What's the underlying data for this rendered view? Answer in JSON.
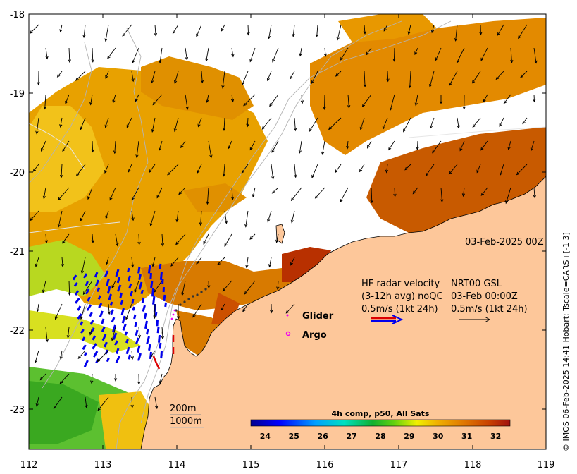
{
  "axes": {
    "x_ticks": [
      "112",
      "113",
      "114",
      "115",
      "116",
      "117",
      "118",
      "119"
    ],
    "y_ticks": [
      "-18",
      "-19",
      "-20",
      "-21",
      "-22",
      "-23"
    ],
    "xlim": [
      112,
      119
    ],
    "ylim": [
      -23.5,
      -18
    ]
  },
  "map": {
    "date_label": "03-Feb-2025 00Z",
    "legend_glider": "Glider",
    "legend_argo": "Argo",
    "depth_200": "200m",
    "depth_1000": "1000m",
    "hf_line1_left": "HF radar velocity",
    "hf_line1_right": "NRT00 GSL",
    "hf_line2_left": "(3-12h avg) noQC",
    "hf_line2_right": "03-Feb 00:00Z",
    "hf_line3_left": "0.5m/s (1kt 24h)",
    "hf_line3_right": "0.5m/s (1kt 24h)",
    "land_color": "#fdc79a",
    "glider_color": "#ee00ee",
    "argo_color": "#ee00ee"
  },
  "colorbar": {
    "title": "4h comp, p50, All Sats",
    "labels": [
      "24",
      "25",
      "26",
      "27",
      "28",
      "29",
      "30",
      "31",
      "32"
    ],
    "range": [
      23.5,
      32.5
    ]
  },
  "credit": "© IMOS 06-Feb-2025 14:41 Hobart; Tscale=CARS+[-1 3]"
}
